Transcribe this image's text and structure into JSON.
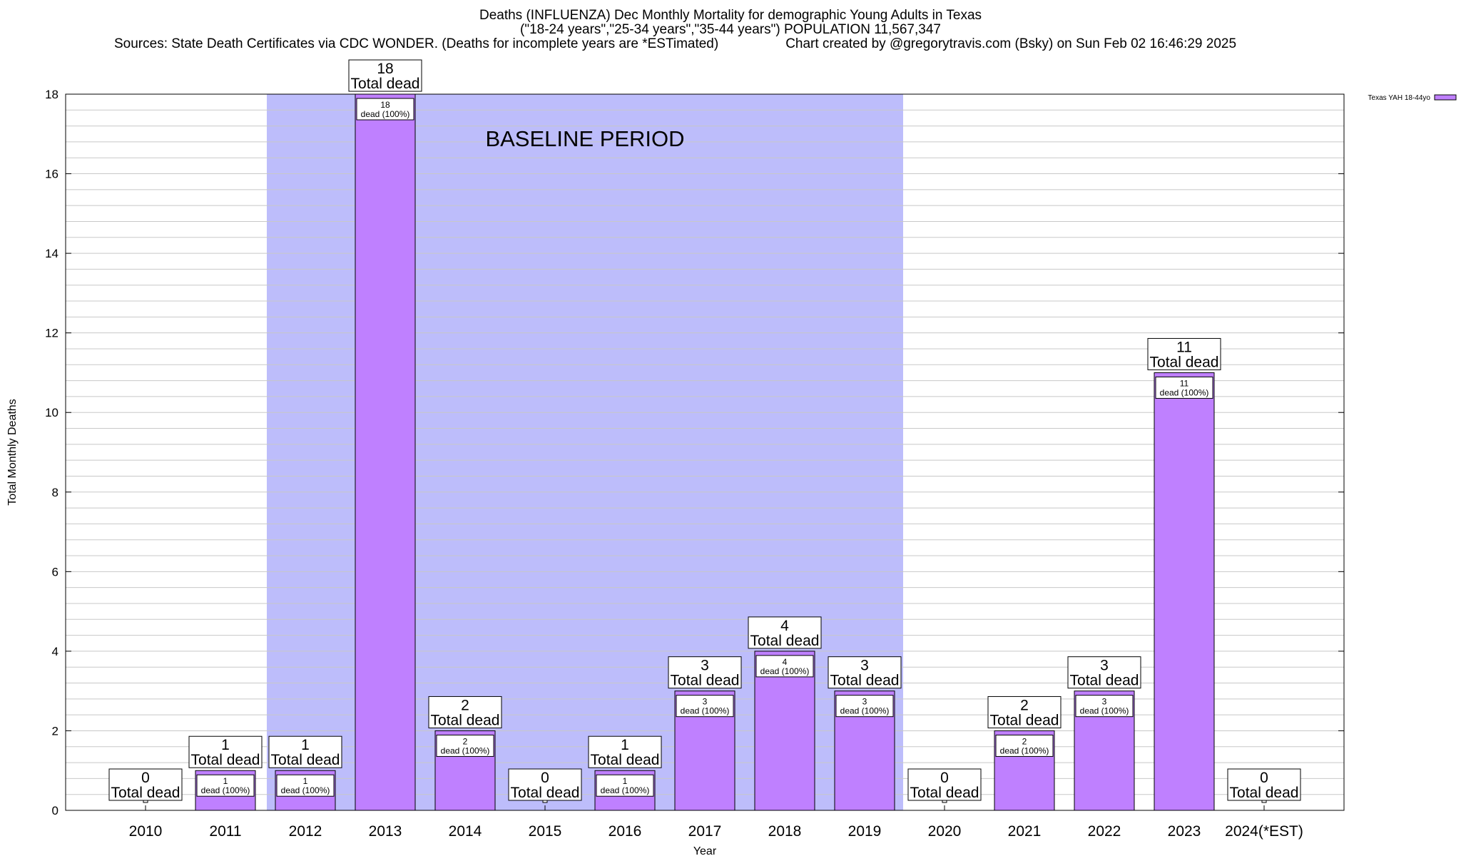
{
  "header": {
    "line1": "Deaths (INFLUENZA) Dec Monthly Mortality for demographic Young Adults in Texas",
    "line2": "(\"18-24 years\",\"25-34 years\",\"35-44 years\") POPULATION 11,567,347",
    "line3_left": "Sources: State Death Certificates via CDC WONDER. (Deaths for incomplete years are *ESTimated)",
    "line3_right": "Chart created by @gregorytravis.com (Bsky) on Sun Feb 02 16:46:29 2025"
  },
  "chart_data": {
    "type": "bar",
    "categories": [
      "2010",
      "2011",
      "2012",
      "2013",
      "2014",
      "2015",
      "2016",
      "2017",
      "2018",
      "2019",
      "2020",
      "2021",
      "2022",
      "2023",
      "2024(*EST)"
    ],
    "series": [
      {
        "name": "Texas YAH 18-44yo",
        "values": [
          0,
          1,
          1,
          18,
          2,
          0,
          1,
          3,
          4,
          3,
          0,
          2,
          3,
          11,
          0
        ],
        "color": "#bf80ff"
      }
    ],
    "bar_labels_total": [
      "Total dead",
      "Total dead",
      "Total dead",
      "Total dead",
      "Total dead",
      "Total dead",
      "Total dead",
      "Total dead",
      "Total dead",
      "Total dead",
      "Total dead",
      "Total dead",
      "Total dead",
      "Total dead",
      "Total dead"
    ],
    "bar_labels_inner_suffix": "dead (100%)",
    "xlabel": "Year",
    "ylabel": "Total Monthly Deaths",
    "ylim": [
      0,
      18
    ],
    "yticks": [
      0,
      2,
      4,
      6,
      8,
      10,
      12,
      14,
      16,
      18
    ],
    "minor_grid_step": 0.4,
    "grid": true,
    "legend": "top-right",
    "annotation": {
      "text": "BASELINE PERIOD",
      "start": "2012",
      "end": "2019",
      "color": "#bdbdfb"
    }
  }
}
